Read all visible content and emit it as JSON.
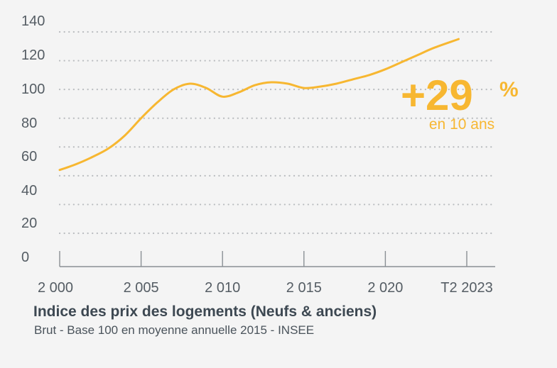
{
  "chart_data": {
    "type": "line",
    "title": "Indice des prix des logements (Neufs & anciens)",
    "subtitle": "Brut - Base 100 en moyenne annuelle 2015 - INSEE",
    "xlabel": "",
    "ylabel": "",
    "ylim": [
      0,
      140
    ],
    "xlim": [
      2000,
      2024.5
    ],
    "y_ticks": [
      0,
      20,
      40,
      60,
      80,
      100,
      120,
      140
    ],
    "y_tick_labels": [
      "0",
      "20",
      "40",
      "60",
      "80",
      "100",
      "120",
      "140"
    ],
    "x_ticks": [
      2000,
      2005,
      2010,
      2015,
      2020,
      2025
    ],
    "x_tick_labels": [
      "2 000",
      "2 005",
      "2 010",
      "2 015",
      "2 020",
      "T2 2023"
    ],
    "grid": true,
    "legend": "none",
    "line_color": "#f7b731",
    "series": [
      {
        "x": [
          2000,
          2001,
          2002,
          2003,
          2004,
          2005,
          2006,
          2007,
          2008,
          2009,
          2010,
          2011,
          2012,
          2013,
          2014,
          2015,
          2016,
          2017,
          2018,
          2019,
          2020,
          2021,
          2022,
          2023,
          2024.5
        ],
        "values": [
          44,
          48,
          53,
          59,
          68,
          80,
          91,
          100,
          104,
          101,
          95,
          98,
          103,
          105,
          104,
          101,
          102,
          104,
          107,
          110,
          114,
          119,
          124,
          129,
          135
        ]
      }
    ],
    "annotation": {
      "big": "+29",
      "percent": "%",
      "period": "en 10 ans",
      "color": "#f7b731"
    }
  }
}
